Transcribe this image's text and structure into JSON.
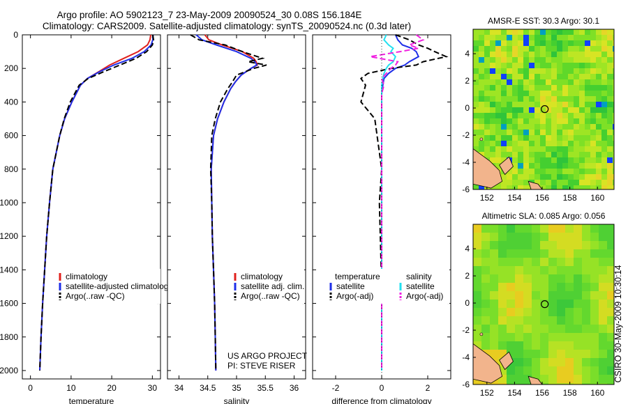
{
  "header": {
    "line1": "Argo profile: AO 5902123_7 23-May-2009 20090524_30 0.08S 156.184E",
    "line2": "Climatology: CARS2009. Satellite-adjusted climatology: synTS_20090524.nc (0.3d later)"
  },
  "side_label": "CSIRO 30-May-2009 10:30:14",
  "colors": {
    "climatology": "#e0201c",
    "satellite": "#1e2ee8",
    "argo": "#000000",
    "sal_satellite": "#22e0f0",
    "sal_argo": "#f020e0",
    "land": "#f2b48c"
  },
  "chart_data": [
    {
      "type": "line",
      "id": "temperature",
      "xlabel": "temperature",
      "xlim": [
        -2,
        32
      ],
      "ylim": [
        2050,
        0
      ],
      "xticks": [
        0,
        10,
        20,
        30
      ],
      "yticks": [
        0,
        200,
        400,
        600,
        800,
        1000,
        1200,
        1400,
        1600,
        1800,
        2000
      ],
      "depth": [
        0,
        30,
        60,
        100,
        140,
        180,
        220,
        260,
        300,
        400,
        500,
        600,
        800,
        1000,
        1200,
        1400,
        1600,
        1800,
        2000
      ],
      "series": [
        {
          "name": "climatology",
          "style": "solid",
          "color": "#e0201c",
          "values": [
            29.6,
            29.4,
            28.8,
            26.5,
            23.0,
            19.5,
            16.8,
            14.0,
            12.3,
            10.2,
            8.4,
            7.2,
            5.5,
            4.7,
            4.0,
            3.5,
            3.0,
            2.6,
            2.3
          ]
        },
        {
          "name": "satellite-adjusted climatology",
          "style": "solid",
          "color": "#1e2ee8",
          "values": [
            30.2,
            30.1,
            29.7,
            28.0,
            25.0,
            20.5,
            17.0,
            14.0,
            12.3,
            10.2,
            8.4,
            7.2,
            5.5,
            4.7,
            4.0,
            3.5,
            3.0,
            2.6,
            2.3
          ]
        },
        {
          "name": "Argo(..raw -QC)",
          "style": "dashed",
          "color": "#000000",
          "values": [
            30.1,
            30.3,
            30.0,
            28.6,
            26.0,
            22.0,
            18.0,
            14.2,
            12.0,
            9.8,
            8.3,
            7.2,
            5.5,
            4.7,
            4.0,
            3.5,
            3.0,
            2.6,
            2.3
          ]
        }
      ],
      "legend": [
        "climatology",
        "satellite-adjusted climatology",
        "Argo(..raw -QC)"
      ]
    },
    {
      "type": "line",
      "id": "salinity",
      "xlabel": "salinity",
      "xlim": [
        33.8,
        36.2
      ],
      "ylim": [
        2050,
        0
      ],
      "xticks": [
        34,
        34.5,
        35,
        35.5,
        36
      ],
      "depth": [
        0,
        30,
        60,
        100,
        140,
        160,
        180,
        200,
        240,
        280,
        320,
        400,
        500,
        600,
        800,
        1000,
        1200,
        1400,
        1600,
        1800,
        2000
      ],
      "series": [
        {
          "name": "climatology",
          "style": "solid",
          "color": "#e0201c",
          "values": [
            34.45,
            34.52,
            34.75,
            35.1,
            35.3,
            35.34,
            35.36,
            35.25,
            35.08,
            34.98,
            34.9,
            34.78,
            34.67,
            34.6,
            34.56,
            34.57,
            34.58,
            34.6,
            34.62,
            34.63,
            34.64
          ]
        },
        {
          "name": "satellite adj. clim.",
          "style": "solid",
          "color": "#1e2ee8",
          "values": [
            34.3,
            34.4,
            34.65,
            35.0,
            35.25,
            35.32,
            35.35,
            35.25,
            35.08,
            34.98,
            34.9,
            34.78,
            34.67,
            34.6,
            34.56,
            34.57,
            34.58,
            34.6,
            34.62,
            34.63,
            34.64
          ]
        },
        {
          "name": "Argo(..raw -QC)",
          "style": "dashed",
          "color": "#000000",
          "values": [
            34.2,
            34.35,
            34.8,
            35.1,
            35.45,
            35.2,
            35.52,
            35.3,
            35.0,
            34.93,
            34.85,
            34.72,
            34.63,
            34.57,
            34.55,
            34.57,
            34.58,
            34.6,
            34.62,
            34.63,
            34.64
          ]
        }
      ],
      "legend": [
        "climatology",
        "satellite adj. clim.",
        "Argo(..raw -QC)"
      ],
      "annotation": [
        "US ARGO PROJECT",
        "PI: STEVE RISER"
      ]
    },
    {
      "type": "line",
      "id": "difference",
      "xlabel": "difference from climatology",
      "xlim": [
        -3,
        3
      ],
      "ylim": [
        2050,
        0
      ],
      "xticks": [
        -2,
        0,
        2
      ],
      "depth": [
        0,
        30,
        60,
        80,
        100,
        130,
        160,
        180,
        200,
        230,
        260,
        300,
        350,
        400,
        450,
        500,
        600,
        800,
        1000,
        1500,
        2000
      ],
      "series": [
        {
          "name": "temperature satellite",
          "style": "solid",
          "color": "#1e2ee8",
          "values": [
            0.6,
            0.7,
            0.9,
            1.3,
            1.5,
            1.6,
            1.2,
            1.0,
            0.6,
            0.3,
            0.1,
            0.05,
            0.0,
            0.0,
            0.0,
            0.0,
            0.0,
            0.0,
            0.0,
            0.0,
            0.0
          ]
        },
        {
          "name": "temperature Argo(-adj)",
          "style": "dashed",
          "color": "#000000",
          "values": [
            0.6,
            1.2,
            1.6,
            2.0,
            2.3,
            2.8,
            1.8,
            1.5,
            0.4,
            -0.6,
            -0.9,
            -0.7,
            -0.8,
            -0.9,
            -0.6,
            -0.3,
            -0.2,
            0.0,
            -0.1,
            0.0,
            0.0
          ]
        },
        {
          "name": "salinity satellite",
          "style": "solid",
          "color": "#22e0f0",
          "values": [
            0.2,
            0.1,
            0.3,
            0.5,
            0.4,
            0.6,
            0.5,
            0.3,
            0.2,
            0.1,
            0.05,
            0.0,
            0.0,
            0.0,
            0.0,
            0.0,
            0.0,
            0.0,
            0.0,
            0.0,
            0.0
          ]
        },
        {
          "name": "salinity Argo(-adj)",
          "style": "dashed",
          "color": "#f020e0",
          "values": [
            1.5,
            1.8,
            1.2,
            1.6,
            0.8,
            -0.5,
            0.7,
            0.6,
            0.4,
            0.2,
            0.0,
            0.1,
            0.0,
            0.0,
            0.0,
            0.0,
            0.0,
            0.0,
            0.0,
            0.0,
            0.0
          ]
        }
      ],
      "legend_temperature": {
        "title": "temperature",
        "items": [
          "satellite",
          "Argo(-adj)"
        ]
      },
      "legend_salinity": {
        "title": "salinity",
        "items": [
          "satellite",
          "Argo(-adj)"
        ]
      }
    },
    {
      "type": "heatmap",
      "id": "sst",
      "title": "AMSR-E SST: 30.3 Argo: 30.1",
      "xlim": [
        151,
        161.2
      ],
      "ylim": [
        -6,
        5.8
      ],
      "xticks": [
        152,
        154,
        156,
        158,
        160
      ],
      "yticks": [
        -6,
        -4,
        -2,
        0,
        2,
        4
      ],
      "marker": {
        "lon": 156.184,
        "lat": -0.08
      }
    },
    {
      "type": "heatmap",
      "id": "sla",
      "title": "Altimetric SLA: 0.085 Argo: 0.056",
      "xlim": [
        151,
        161.2
      ],
      "ylim": [
        -6,
        5.8
      ],
      "xticks": [
        152,
        154,
        156,
        158,
        160
      ],
      "yticks": [
        -6,
        -4,
        -2,
        0,
        2,
        4
      ],
      "marker": {
        "lon": 156.184,
        "lat": -0.08
      }
    }
  ]
}
